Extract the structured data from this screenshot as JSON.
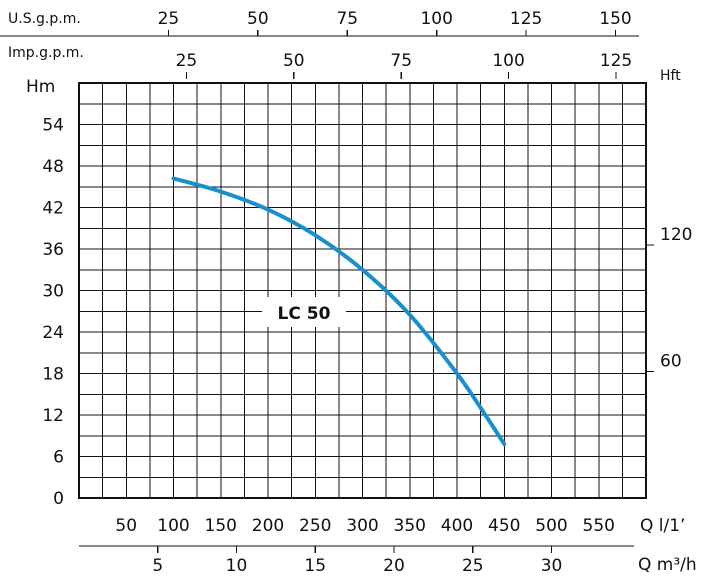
{
  "chart_data": {
    "type": "line",
    "series": [
      {
        "name": "LC 50",
        "x": [
          100,
          150,
          200,
          250,
          300,
          350,
          400,
          430,
          450
        ],
        "y": [
          46.2,
          44.3,
          41.7,
          38.0,
          33.0,
          26.5,
          18.0,
          12.0,
          7.8
        ],
        "color": "#1a8fd0"
      }
    ],
    "curve_label": "LC 50",
    "x_unit": "Q l/1’",
    "x_ticks": [
      "50",
      "100",
      "150",
      "200",
      "250",
      "300",
      "350",
      "400",
      "450",
      "500",
      "550"
    ],
    "x_range": [
      0,
      600
    ],
    "y_unit": "Hm",
    "y_ticks": [
      "0",
      "6",
      "12",
      "18",
      "24",
      "30",
      "36",
      "42",
      "48",
      "54"
    ],
    "y_range": [
      0,
      60
    ],
    "grid": true,
    "secondary_axes": {
      "us_gpm": {
        "label": "U.S.g.p.m.",
        "ticks": [
          "25",
          "50",
          "75",
          "100",
          "125",
          "150"
        ],
        "values": [
          25,
          50,
          75,
          100,
          125,
          150
        ],
        "lpm_per_unit": 3.785
      },
      "imp_gpm": {
        "label": "Imp.g.p.m.",
        "ticks": [
          "25",
          "50",
          "75",
          "100",
          "125"
        ],
        "values": [
          25,
          50,
          75,
          100,
          125
        ],
        "lpm_per_unit": 4.546
      },
      "m3h": {
        "label": "Q m³/h",
        "ticks": [
          "5",
          "10",
          "15",
          "20",
          "25",
          "30"
        ],
        "values": [
          5,
          10,
          15,
          20,
          25,
          30
        ],
        "lpm_per_unit": 16.667
      },
      "hft": {
        "label": "Hft",
        "ticks": [
          "60",
          "120"
        ],
        "values": [
          60,
          120
        ],
        "m_per_unit": 0.3048
      }
    }
  }
}
